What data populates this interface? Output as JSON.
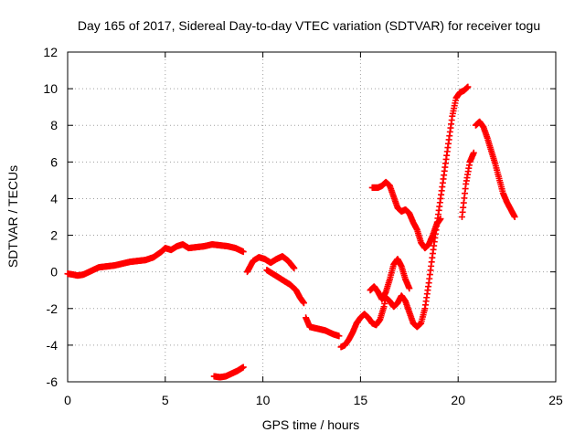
{
  "chart_data": {
    "type": "scatter",
    "title": "Day 165 of 2017, Sidereal Day-to-day VTEC variation (SDTVAR) for receiver togu",
    "xlabel": "GPS time / hours",
    "ylabel": "SDTVAR / TECUs",
    "xlim": [
      0,
      25
    ],
    "ylim": [
      -6,
      12
    ],
    "x_ticks": [
      "0",
      "5",
      "10",
      "15",
      "20",
      "25"
    ],
    "y_ticks": [
      "-6",
      "-4",
      "-2",
      "0",
      "2",
      "4",
      "6",
      "8",
      "10",
      "12"
    ],
    "x_tick_values": [
      0,
      5,
      10,
      15,
      20,
      25
    ],
    "y_tick_values": [
      -6,
      -4,
      -2,
      0,
      2,
      4,
      6,
      8,
      10,
      12
    ],
    "grid": true,
    "legend": "none",
    "marker": "+",
    "color": "#ff0000",
    "series": [
      {
        "points": [
          [
            0.0,
            -0.1
          ],
          [
            0.3,
            -0.15
          ],
          [
            0.5,
            -0.2
          ],
          [
            0.8,
            -0.15
          ],
          [
            1.0,
            -0.05
          ],
          [
            1.3,
            0.1
          ],
          [
            1.6,
            0.25
          ],
          [
            2.0,
            0.3
          ],
          [
            2.4,
            0.35
          ],
          [
            2.8,
            0.45
          ],
          [
            3.2,
            0.55
          ],
          [
            3.6,
            0.6
          ],
          [
            4.0,
            0.65
          ],
          [
            4.4,
            0.8
          ],
          [
            4.8,
            1.1
          ],
          [
            5.0,
            1.3
          ],
          [
            5.3,
            1.2
          ],
          [
            5.6,
            1.4
          ],
          [
            5.9,
            1.5
          ],
          [
            6.2,
            1.3
          ],
          [
            6.6,
            1.35
          ],
          [
            7.0,
            1.4
          ],
          [
            7.4,
            1.5
          ],
          [
            7.8,
            1.45
          ],
          [
            8.2,
            1.4
          ],
          [
            8.6,
            1.3
          ],
          [
            9.0,
            1.1
          ]
        ]
      },
      {
        "points": [
          [
            7.5,
            -5.7
          ],
          [
            7.8,
            -5.75
          ],
          [
            8.1,
            -5.7
          ],
          [
            8.4,
            -5.55
          ],
          [
            8.7,
            -5.4
          ],
          [
            9.0,
            -5.2
          ]
        ]
      },
      {
        "points": [
          [
            9.2,
            0.0
          ],
          [
            9.5,
            0.6
          ],
          [
            9.8,
            0.8
          ],
          [
            10.1,
            0.7
          ],
          [
            10.4,
            0.5
          ],
          [
            10.7,
            0.7
          ],
          [
            11.0,
            0.85
          ],
          [
            11.3,
            0.6
          ],
          [
            11.6,
            0.2
          ]
        ]
      },
      {
        "points": [
          [
            10.2,
            0.1
          ],
          [
            10.5,
            -0.1
          ],
          [
            10.8,
            -0.3
          ],
          [
            11.1,
            -0.5
          ],
          [
            11.4,
            -0.7
          ],
          [
            11.7,
            -1.0
          ],
          [
            11.9,
            -1.4
          ],
          [
            12.1,
            -1.7
          ]
        ]
      },
      {
        "points": [
          [
            12.2,
            -2.5
          ],
          [
            12.4,
            -3.0
          ],
          [
            12.8,
            -3.1
          ],
          [
            13.2,
            -3.2
          ],
          [
            13.6,
            -3.4
          ],
          [
            13.9,
            -3.5
          ]
        ]
      },
      {
        "points": [
          [
            14.0,
            -4.1
          ],
          [
            14.2,
            -4.0
          ],
          [
            14.4,
            -3.7
          ],
          [
            14.6,
            -3.3
          ],
          [
            14.8,
            -2.8
          ],
          [
            15.0,
            -2.5
          ],
          [
            15.2,
            -2.3
          ],
          [
            15.4,
            -2.5
          ],
          [
            15.6,
            -2.8
          ],
          [
            15.8,
            -2.9
          ],
          [
            16.0,
            -2.6
          ],
          [
            16.2,
            -1.9
          ],
          [
            16.3,
            -1.4
          ],
          [
            16.5,
            -1.6
          ],
          [
            16.7,
            -1.9
          ],
          [
            16.9,
            -1.7
          ],
          [
            17.1,
            -1.3
          ],
          [
            17.3,
            -1.6
          ],
          [
            17.5,
            -2.2
          ],
          [
            17.7,
            -2.8
          ],
          [
            17.9,
            -3.0
          ],
          [
            18.1,
            -2.8
          ],
          [
            18.3,
            -2.0
          ],
          [
            18.5,
            -0.6
          ],
          [
            18.7,
            1.0
          ],
          [
            18.9,
            2.5
          ],
          [
            19.1,
            4.0
          ],
          [
            19.3,
            5.5
          ],
          [
            19.5,
            7.0
          ],
          [
            19.7,
            8.5
          ],
          [
            19.9,
            9.5
          ],
          [
            20.1,
            9.8
          ],
          [
            20.3,
            9.9
          ],
          [
            20.5,
            10.1
          ]
        ]
      },
      {
        "points": [
          [
            15.6,
            4.6
          ],
          [
            15.9,
            4.6
          ],
          [
            16.1,
            4.7
          ],
          [
            16.3,
            4.9
          ],
          [
            16.5,
            4.7
          ],
          [
            16.7,
            4.1
          ],
          [
            16.9,
            3.5
          ],
          [
            17.1,
            3.3
          ],
          [
            17.3,
            3.4
          ],
          [
            17.5,
            3.2
          ],
          [
            17.7,
            2.7
          ],
          [
            17.9,
            2.3
          ],
          [
            18.1,
            1.6
          ],
          [
            18.3,
            1.3
          ],
          [
            18.5,
            1.5
          ],
          [
            18.7,
            2.0
          ],
          [
            18.9,
            2.6
          ],
          [
            19.1,
            2.9
          ]
        ]
      },
      {
        "points": [
          [
            15.5,
            -1.0
          ],
          [
            15.7,
            -0.8
          ],
          [
            15.9,
            -1.1
          ],
          [
            16.1,
            -1.5
          ],
          [
            16.3,
            -1.1
          ],
          [
            16.5,
            -0.4
          ],
          [
            16.7,
            0.4
          ],
          [
            16.9,
            0.7
          ],
          [
            17.1,
            0.3
          ],
          [
            17.3,
            -0.4
          ],
          [
            17.5,
            -0.9
          ]
        ]
      },
      {
        "points": [
          [
            20.2,
            3.0
          ],
          [
            20.4,
            4.8
          ],
          [
            20.6,
            6.0
          ],
          [
            20.8,
            6.5
          ]
        ]
      },
      {
        "points": [
          [
            20.9,
            8.0
          ],
          [
            21.1,
            8.2
          ],
          [
            21.3,
            7.9
          ],
          [
            21.5,
            7.3
          ],
          [
            21.7,
            6.6
          ],
          [
            21.9,
            5.9
          ],
          [
            22.1,
            5.1
          ],
          [
            22.3,
            4.3
          ],
          [
            22.5,
            3.8
          ],
          [
            22.7,
            3.4
          ],
          [
            22.9,
            3.0
          ]
        ]
      }
    ]
  }
}
